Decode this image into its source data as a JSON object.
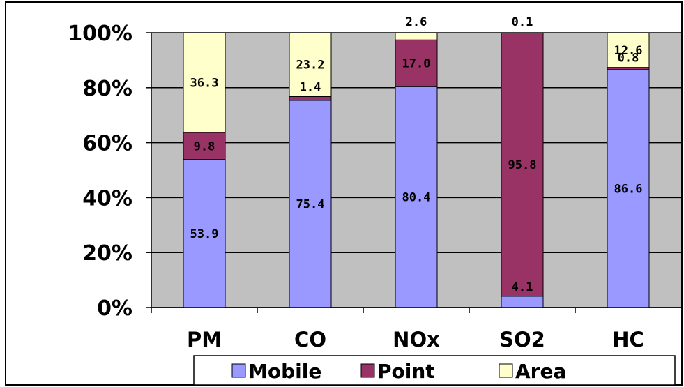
{
  "chart_data": {
    "type": "bar",
    "stacked": true,
    "percent_stacked": true,
    "categories": [
      "PM",
      "CO",
      "NOx",
      "SO2",
      "HC"
    ],
    "series": [
      {
        "name": "Mobile",
        "color": "#9999ff",
        "values": [
          53.9,
          75.4,
          80.4,
          4.1,
          86.6
        ],
        "labels": [
          "53.9",
          "75.4",
          "80.4",
          "4.1",
          "86.6"
        ]
      },
      {
        "name": "Point",
        "color": "#993366",
        "values": [
          9.8,
          1.4,
          17.0,
          95.8,
          0.8
        ],
        "labels": [
          "9.8",
          "1.4",
          "17.0",
          "95.8",
          "0.8"
        ]
      },
      {
        "name": "Area",
        "color": "#ffffcc",
        "values": [
          36.3,
          23.2,
          2.6,
          0.1,
          12.6
        ],
        "labels": [
          "36.3",
          "23.2",
          "2.6",
          "0.1",
          "12.6"
        ]
      }
    ],
    "yticks": [
      "0%",
      "20%",
      "40%",
      "60%",
      "80%",
      "100%"
    ],
    "ylim": [
      0,
      100
    ],
    "grid": true,
    "legend_position": "bottom",
    "plot_background": "#c0c0c0"
  }
}
